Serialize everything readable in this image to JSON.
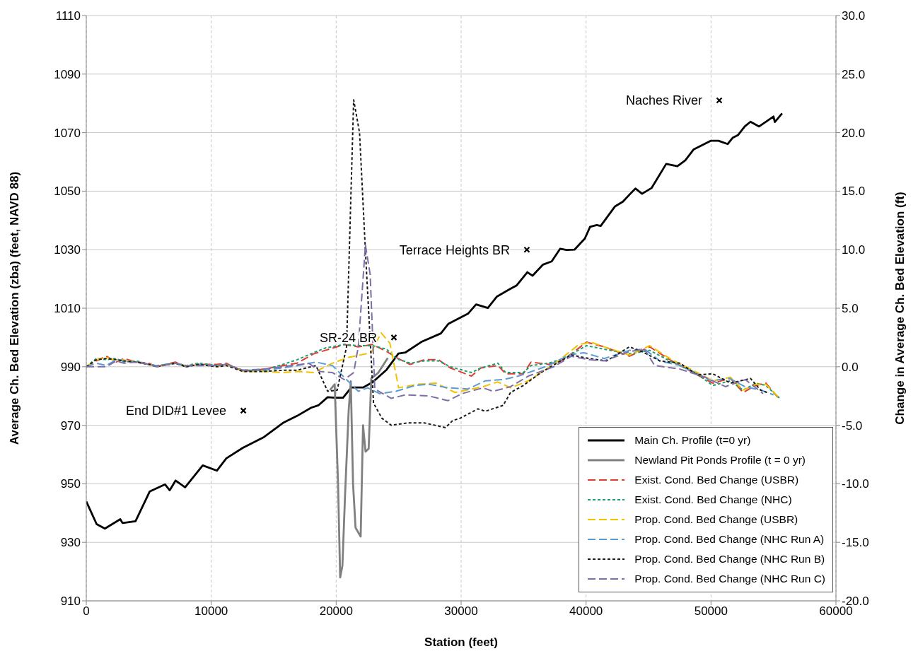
{
  "chart_data": {
    "type": "line",
    "xlabel": "Station (feet)",
    "ylabel": "Average Ch. Bed  Elevation (zba) (feet, NAVD 88)",
    "y2label": "Change in Average Ch. Bed Elevation (ft)",
    "xlim": [
      0,
      60000
    ],
    "xticks": [
      0,
      10000,
      20000,
      30000,
      40000,
      50000,
      60000
    ],
    "ylim": [
      910,
      1110
    ],
    "yticks": [
      910,
      930,
      950,
      970,
      990,
      1010,
      1030,
      1050,
      1070,
      1090,
      1110
    ],
    "y2lim": [
      -20,
      30
    ],
    "y2ticks": [
      {
        "value": -20,
        "label": "-20.0"
      },
      {
        "value": -15,
        "label": "-15.0"
      },
      {
        "value": -10,
        "label": "-10.0"
      },
      {
        "value": -5,
        "label": "-5.0"
      },
      {
        "value": 0,
        "label": "0.0"
      },
      {
        "value": 5,
        "label": "5.0"
      },
      {
        "value": 10,
        "label": "10.0"
      },
      {
        "value": 15,
        "label": "15.0"
      },
      {
        "value": 20,
        "label": "20.0"
      },
      {
        "value": 25,
        "label": "25.0"
      },
      {
        "value": 30,
        "label": "30.0"
      }
    ],
    "grid": true,
    "legend": "bottom right",
    "annotations": [
      {
        "text": "End DID#1 Levee",
        "x": 12570,
        "y": 975
      },
      {
        "text": "SR-24 BR",
        "x": 24620,
        "y": 1000
      },
      {
        "text": "Terrace Heights BR",
        "x": 35260,
        "y": 1030
      },
      {
        "text": "Naches River",
        "x": 50660,
        "y": 1081
      }
    ],
    "series": [
      {
        "type": "scatter",
        "marker": "cross",
        "color": "#000000",
        "x": [
          12570,
          24620,
          35260,
          50660
        ],
        "values": [
          975,
          1000,
          1030,
          1081
        ]
      },
      {
        "name": "Main Ch. Profile (t=0 yr)",
        "color": "#000000",
        "line_style": "solid",
        "x": [
          0,
          830,
          1490,
          2720,
          2900,
          3940,
          5080,
          6300,
          6680,
          7150,
          7910,
          9320,
          10450,
          11210,
          12530,
          14230,
          15740,
          16870,
          18000,
          18570,
          19320,
          19880,
          20550,
          21210,
          22150,
          22910,
          24040,
          24980,
          25550,
          26870,
          28380,
          28990,
          30570,
          31200,
          32140,
          32870,
          33920,
          34450,
          35300,
          35720,
          36550,
          37250,
          37920,
          38440,
          39070,
          39900,
          40320,
          40850,
          41170,
          42320,
          42950,
          43470,
          43950,
          44480,
          45250,
          46410,
          47310,
          47940,
          48600,
          49970,
          50600,
          51330,
          51750,
          52170,
          52700,
          53160,
          53850,
          55000,
          55110,
          55690
        ],
        "values": [
          944,
          936.2,
          934.7,
          937.9,
          936.6,
          937.2,
          947.4,
          949.8,
          947.8,
          951.1,
          948.8,
          956.3,
          954.5,
          958.7,
          962.3,
          966,
          970.8,
          973.2,
          976,
          976.8,
          979.6,
          979.4,
          979.4,
          982.9,
          982.9,
          984.7,
          989,
          994.5,
          994.9,
          998.6,
          1001.4,
          1004.7,
          1008.2,
          1011.3,
          1010.1,
          1014,
          1016.6,
          1017.8,
          1022.3,
          1021.1,
          1024.9,
          1026,
          1030.3,
          1029.9,
          1030,
          1033.8,
          1037.8,
          1038.4,
          1038.1,
          1044.8,
          1046.4,
          1048.8,
          1050.9,
          1049.1,
          1051.1,
          1059.3,
          1058.5,
          1060.5,
          1064.2,
          1067.2,
          1067.2,
          1066.1,
          1068.3,
          1069.2,
          1072.1,
          1073.7,
          1072.1,
          1075.5,
          1073.6,
          1076.6
        ]
      },
      {
        "name": "Newland Pit Ponds Profile (t = 0 yr)",
        "color": "#808080",
        "line_style": "solid",
        "x": [
          19500,
          19880,
          20150,
          20320,
          20500,
          20700,
          21000,
          21170,
          21350,
          21550,
          21960,
          22150,
          22350,
          22600,
          22810,
          23380,
          24130
        ],
        "values": [
          982,
          984,
          950,
          918,
          922,
          945,
          975,
          985,
          950,
          935,
          932,
          970,
          961,
          962,
          986,
          988,
          993
        ]
      },
      {
        "name": "Exist. Cond. Bed Change (USBR)",
        "axis": "y2",
        "color": "#e03c31",
        "line_style": "dashed",
        "x": [
          0,
          800,
          1600,
          2400,
          3000,
          4000,
          5000,
          5640,
          7130,
          7980,
          9000,
          10450,
          11210,
          12530,
          14230,
          15740,
          16870,
          18190,
          19130,
          20640,
          21770,
          22910,
          24040,
          24790,
          25920,
          27060,
          28190,
          29130,
          30830,
          31580,
          32940,
          33570,
          34980,
          35590,
          37000,
          38210,
          40040,
          41450,
          43470,
          45090,
          46700,
          48730,
          50140,
          51560,
          52570,
          53580,
          54390,
          55500
        ],
        "values": [
          0,
          0.5,
          0.9,
          0.4,
          0.7,
          0.4,
          0.3,
          0,
          0.4,
          0,
          0.2,
          0.2,
          0.3,
          -0.4,
          -0.2,
          0.1,
          0.3,
          1.1,
          1.4,
          1.9,
          1.7,
          1.9,
          1.3,
          0.8,
          0.2,
          0.6,
          0.6,
          -0.1,
          -0.8,
          -0.1,
          0.1,
          -0.6,
          -0.6,
          0.4,
          0.2,
          0.6,
          2.1,
          1.7,
          0.9,
          1.7,
          0.6,
          -0.6,
          -1.4,
          -1.0,
          -2.2,
          -1.6,
          -1.4,
          -2.8
        ]
      },
      {
        "name": "Exist. Cond. Bed Change (NHC)",
        "axis": "y2",
        "color": "#1c9e6e",
        "line_style": "dotted",
        "x": [
          0,
          800,
          1600,
          2400,
          3000,
          4000,
          5000,
          5640,
          7130,
          7980,
          9000,
          10450,
          11210,
          12530,
          14230,
          15740,
          16870,
          18190,
          19130,
          20640,
          21770,
          22910,
          24040,
          24790,
          25920,
          27060,
          28190,
          29130,
          30830,
          31580,
          32940,
          33570,
          34980,
          35590,
          37000,
          38210,
          40040,
          41450,
          43470,
          45090,
          46700,
          48730,
          50140,
          51560,
          52570,
          53580,
          54390,
          55500
        ],
        "values": [
          0,
          0.7,
          0.6,
          0.7,
          0.4,
          0.5,
          0.2,
          0.1,
          0.3,
          0.1,
          0.3,
          0.1,
          0.2,
          -0.3,
          -0.3,
          0.2,
          0.6,
          1.2,
          1.6,
          1.9,
          1.8,
          1.8,
          1.5,
          0.7,
          0.3,
          0.5,
          0.5,
          0,
          -0.5,
          -0.1,
          0.3,
          -0.5,
          -0.5,
          0.1,
          0.3,
          0.7,
          1.8,
          1.5,
          1.1,
          1.4,
          0.5,
          -0.5,
          -1.6,
          -1.2,
          -2.0,
          -1.4,
          -1.6,
          -2.7
        ]
      },
      {
        "name": "Prop. Cond. Bed Change (USBR)",
        "axis": "y2",
        "color": "#f2c200",
        "line_style": "dashed",
        "x": [
          0,
          800,
          1600,
          2400,
          3000,
          4000,
          5000,
          5640,
          7130,
          7980,
          9000,
          10450,
          11210,
          12530,
          14230,
          15740,
          16870,
          18190,
          19700,
          21000,
          22800,
          23600,
          24300,
          25000,
          26500,
          28000,
          29520,
          31750,
          32940,
          33960,
          35380,
          37410,
          39430,
          40410,
          41450,
          43470,
          45090,
          46700,
          48730,
          50140,
          51560,
          52570,
          53580,
          54390,
          55500
        ],
        "values": [
          0,
          0.6,
          0.8,
          0.5,
          0.6,
          0.4,
          0.2,
          0,
          0.3,
          0.1,
          0.2,
          0,
          0.2,
          -0.4,
          -0.4,
          -0.5,
          -0.4,
          -0.5,
          0.3,
          0.8,
          1.2,
          2.9,
          2.0,
          -1.8,
          -1.5,
          -1.4,
          -2.2,
          -1.7,
          -1.3,
          -1.8,
          -1.2,
          0.2,
          1.9,
          2.1,
          1.7,
          1.0,
          1.8,
          0.7,
          -0.4,
          -1.2,
          -0.9,
          -2.0,
          -1.5,
          -1.5,
          -2.7
        ]
      },
      {
        "name": "Prop. Cond. Bed Change (NHC Run A)",
        "axis": "y2",
        "color": "#5b9bd5",
        "line_style": "dashed",
        "x": [
          0,
          800,
          1600,
          2400,
          3000,
          4000,
          5000,
          5640,
          7130,
          7980,
          9000,
          10450,
          11210,
          12530,
          14230,
          15740,
          16870,
          18380,
          19700,
          20830,
          21770,
          22530,
          23470,
          24790,
          26300,
          27440,
          28940,
          30530,
          31950,
          33360,
          34580,
          37000,
          38620,
          39830,
          41450,
          43470,
          44680,
          45900,
          47510,
          48700,
          50000,
          51500,
          52700,
          54000,
          55000
        ],
        "values": [
          0,
          0.3,
          0.1,
          0.6,
          0.5,
          0.4,
          0.2,
          0.1,
          0.3,
          0,
          0.2,
          0.1,
          0.2,
          -0.3,
          -0.3,
          -0.1,
          0.1,
          0.4,
          0.1,
          -1.1,
          -2.1,
          -1.8,
          -2.3,
          -2.1,
          -1.6,
          -1.5,
          -1.8,
          -1.9,
          -1.2,
          -1.1,
          -0.8,
          0.1,
          1.0,
          1.2,
          0.7,
          1.4,
          1.5,
          0.5,
          0.1,
          -0.5,
          -1.2,
          -1.0,
          -1.7,
          -2.0,
          -2.4
        ]
      },
      {
        "name": "Prop. Cond. Bed Change (NHC Run B)",
        "axis": "y2",
        "color": "#1a1a1a",
        "line_style": "dotted",
        "x": [
          0,
          800,
          1600,
          2400,
          3000,
          4000,
          5000,
          5640,
          7130,
          7980,
          9000,
          10450,
          11210,
          12530,
          14230,
          15740,
          16870,
          18380,
          19320,
          20080,
          20830,
          21400,
          21870,
          22340,
          22990,
          23660,
          24410,
          25740,
          27060,
          28750,
          29320,
          29920,
          31340,
          31950,
          33360,
          33960,
          34980,
          36390,
          37810,
          38820,
          40240,
          41650,
          43470,
          44480,
          45900,
          47510,
          48920,
          50140,
          51560,
          53160,
          53980,
          54500
        ],
        "values": [
          0,
          0.6,
          0.7,
          0.6,
          0.5,
          0.4,
          0.2,
          0,
          0.3,
          0,
          0.2,
          0,
          0.1,
          -0.4,
          -0.4,
          -0.3,
          -0.3,
          0.1,
          -2.1,
          -2.0,
          1.7,
          22.8,
          20.0,
          9.9,
          -3.1,
          -4.4,
          -5.0,
          -4.8,
          -4.8,
          -5.2,
          -4.6,
          -4.4,
          -3.6,
          -3.8,
          -3.3,
          -2.2,
          -1.6,
          -0.5,
          0.4,
          1.0,
          0.7,
          0.5,
          1.7,
          1.3,
          0.5,
          0.3,
          -0.7,
          -0.6,
          -1.4,
          -1.0,
          -2.0,
          -2.2
        ]
      },
      {
        "name": "Prop. Cond. Bed Change (NHC Run C)",
        "axis": "y2",
        "color": "#7f6fa6",
        "line_style": "dashed",
        "x": [
          0,
          800,
          1600,
          2400,
          3000,
          4000,
          5000,
          5640,
          7130,
          7980,
          9000,
          10450,
          11210,
          12530,
          14230,
          15740,
          17810,
          18700,
          19700,
          20640,
          21400,
          21770,
          22340,
          22720,
          23090,
          24410,
          25550,
          27440,
          28940,
          30070,
          31750,
          32550,
          33960,
          35380,
          37410,
          38820,
          40240,
          41450,
          43470,
          44680,
          45490,
          47510,
          49530,
          51150,
          52750,
          54170
        ],
        "values": [
          0,
          0,
          0,
          0.5,
          0.3,
          0.4,
          0.2,
          0,
          0.3,
          0.1,
          0.1,
          0.1,
          0.2,
          -0.3,
          -0.2,
          0,
          0.3,
          -0.4,
          -0.5,
          -1.1,
          -0.5,
          1.7,
          10.4,
          7.9,
          -1.9,
          -2.7,
          -2.4,
          -2.5,
          -2.9,
          -2.3,
          -1.8,
          -2.1,
          -1.7,
          -0.8,
          0,
          0.9,
          0.6,
          0.5,
          1.3,
          1.5,
          0.1,
          -0.2,
          -0.9,
          -1.7,
          -1.1,
          -2.3
        ]
      }
    ]
  }
}
